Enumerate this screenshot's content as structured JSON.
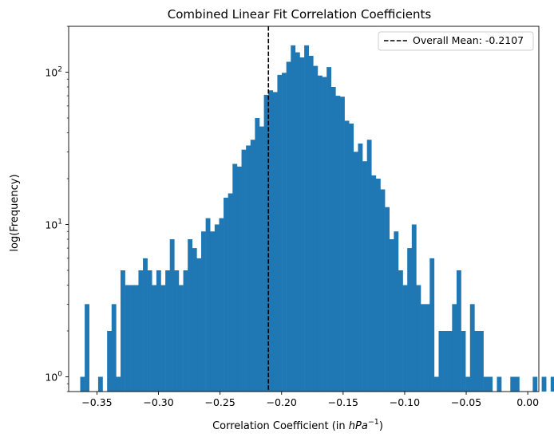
{
  "chart_data": {
    "type": "bar",
    "subtype": "histogram",
    "title": "Combined Linear Fit Correlation Coefficients",
    "xlabel": "Correlation Coefficient (in hPa⁻¹)",
    "xlabel_parts": {
      "prefix": "Correlation Coefficient (in ",
      "var": "hPa",
      "sup": "−1",
      "suffix": ")"
    },
    "ylabel": "log(Frequency)",
    "y_scale": "log",
    "xlim": [
      -0.373,
      0.009
    ],
    "ylim": [
      0.8,
      200
    ],
    "x_ticks": [
      -0.35,
      -0.3,
      -0.25,
      -0.2,
      -0.15,
      -0.1,
      -0.05,
      0.0
    ],
    "x_tick_labels": [
      "−0.35",
      "−0.30",
      "−0.25",
      "−0.20",
      "−0.15",
      "−0.10",
      "−0.05",
      "0.00"
    ],
    "y_ticks": [
      1,
      10,
      100
    ],
    "y_tick_labels": [
      {
        "base": "10",
        "exp": "0"
      },
      {
        "base": "10",
        "exp": "1"
      },
      {
        "base": "10",
        "exp": "2"
      }
    ],
    "bar_color": "#1f77b4",
    "bin_start": -0.3636,
    "bin_width": 0.00364,
    "counts": [
      1,
      3,
      0,
      0,
      1,
      0,
      2,
      3,
      1,
      5,
      4,
      4,
      4,
      5,
      6,
      5,
      4,
      5,
      4,
      5,
      8,
      5,
      4,
      5,
      8,
      7,
      6,
      9,
      11,
      9,
      10,
      11,
      15,
      16,
      25,
      24,
      31,
      33,
      36,
      50,
      44,
      71,
      76,
      74,
      96,
      99,
      117,
      150,
      135,
      125,
      150,
      128,
      110,
      95,
      93,
      108,
      80,
      70,
      69,
      48,
      46,
      30,
      34,
      26,
      36,
      21,
      20,
      17,
      13,
      8,
      9,
      5,
      4,
      7,
      10,
      4,
      3,
      3,
      6,
      1,
      2,
      2,
      2,
      3,
      5,
      2,
      1,
      3,
      2,
      2,
      1,
      1,
      0,
      1,
      0,
      0,
      1,
      1,
      0,
      0,
      0,
      1,
      0,
      1,
      0,
      1,
      0
    ],
    "mean_line": {
      "x": -0.2107,
      "style": "dashed",
      "color": "#000000"
    },
    "legend": {
      "position": "top-right",
      "entries": [
        {
          "label": "Overall Mean: -0.2107",
          "style": "dashed",
          "color": "#000000"
        }
      ]
    },
    "grid": false
  }
}
